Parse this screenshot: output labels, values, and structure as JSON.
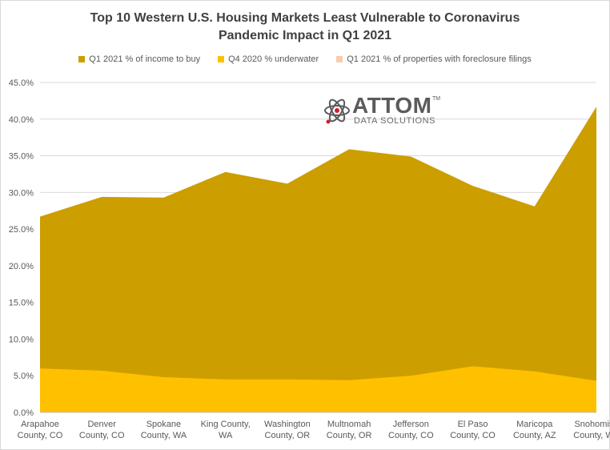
{
  "chart_data": {
    "type": "area",
    "title_line1": "Top 10 Western U.S. Housing Markets Least Vulnerable to Coronavirus",
    "title_line2": "Pandemic Impact in Q1 2021",
    "categories": [
      [
        "Arapahoe",
        "County, CO"
      ],
      [
        "Denver",
        "County, CO"
      ],
      [
        "Spokane",
        "County, WA"
      ],
      [
        "King County,",
        "WA"
      ],
      [
        "Washington",
        "County, OR"
      ],
      [
        "Multnomah",
        "County, OR"
      ],
      [
        "Jefferson",
        "County, CO"
      ],
      [
        "El Paso",
        "County, CO"
      ],
      [
        "Maricopa",
        "County, AZ"
      ],
      [
        "Snohomish",
        "County, WA"
      ]
    ],
    "series": [
      {
        "name": "Q1 2021 % of income to buy",
        "color": "#CC9E00",
        "values": [
          26.7,
          29.4,
          29.3,
          32.8,
          31.2,
          35.9,
          34.9,
          30.9,
          28.1,
          41.7
        ]
      },
      {
        "name": "Q4 2020 % underwater",
        "color": "#FFC000",
        "values": [
          6.0,
          5.7,
          4.8,
          4.5,
          4.5,
          4.4,
          5.0,
          6.3,
          5.6,
          4.3
        ]
      },
      {
        "name": "Q1 2021 % of properties with foreclosure filings",
        "color": "#F8CBAD",
        "values": [
          0.02,
          0.02,
          0.01,
          0.01,
          0.01,
          0.01,
          0.01,
          0.02,
          0.01,
          0.01
        ]
      }
    ],
    "y_ticks": [
      "0.0%",
      "5.0%",
      "10.0%",
      "15.0%",
      "20.0%",
      "25.0%",
      "30.0%",
      "35.0%",
      "40.0%",
      "45.0%"
    ],
    "ylim": [
      0,
      45
    ],
    "grid": true,
    "legend_position": "top"
  },
  "logo": {
    "word": "ATTOM",
    "tm": "TM",
    "sub": "DATA SOLUTIONS"
  }
}
